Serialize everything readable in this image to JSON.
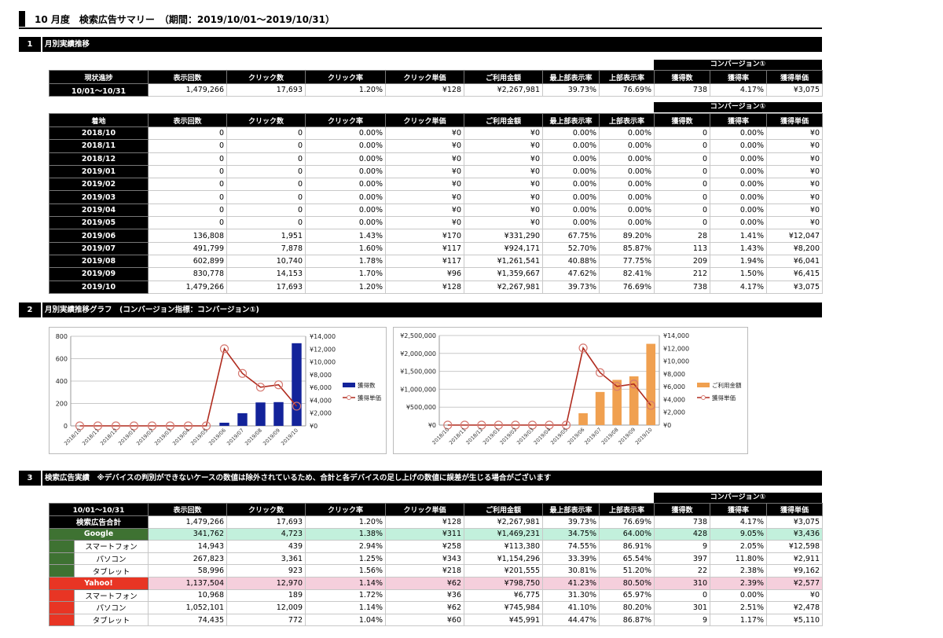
{
  "title": "10 月度　検索広告サマリー　（期間：2019/10/01～2019/10/31）",
  "sections": [
    {
      "num": "1",
      "label": "月別実績推移"
    },
    {
      "num": "2",
      "label": "月別実績推移グラフ　(コンバージョン指標：コンバージョン①)"
    },
    {
      "num": "3",
      "label": "検索広告実績　※デバイスの判別ができないケースの数値は除外されているため、合計と各デバイスの足し上げの数値に誤差が生じる場合がございます"
    }
  ],
  "conversion_group_label": "コンバージョン①",
  "columns": [
    "表示回数",
    "クリック数",
    "クリック率",
    "クリック単価",
    "ご利用金額",
    "最上部表示率",
    "上部表示率",
    "獲得数",
    "獲得率",
    "獲得単価"
  ],
  "table1": {
    "head": "現状進捗",
    "rows": [
      [
        "10/01～10/31",
        "1,479,266",
        "17,693",
        "1.20%",
        "¥128",
        "¥2,267,981",
        "39.73%",
        "76.69%",
        "738",
        "4.17%",
        "¥3,075"
      ]
    ]
  },
  "table2": {
    "head": "着地",
    "rows": [
      [
        "2018/10",
        "0",
        "0",
        "0.00%",
        "¥0",
        "¥0",
        "0.00%",
        "0.00%",
        "0",
        "0.00%",
        "¥0"
      ],
      [
        "2018/11",
        "0",
        "0",
        "0.00%",
        "¥0",
        "¥0",
        "0.00%",
        "0.00%",
        "0",
        "0.00%",
        "¥0"
      ],
      [
        "2018/12",
        "0",
        "0",
        "0.00%",
        "¥0",
        "¥0",
        "0.00%",
        "0.00%",
        "0",
        "0.00%",
        "¥0"
      ],
      [
        "2019/01",
        "0",
        "0",
        "0.00%",
        "¥0",
        "¥0",
        "0.00%",
        "0.00%",
        "0",
        "0.00%",
        "¥0"
      ],
      [
        "2019/02",
        "0",
        "0",
        "0.00%",
        "¥0",
        "¥0",
        "0.00%",
        "0.00%",
        "0",
        "0.00%",
        "¥0"
      ],
      [
        "2019/03",
        "0",
        "0",
        "0.00%",
        "¥0",
        "¥0",
        "0.00%",
        "0.00%",
        "0",
        "0.00%",
        "¥0"
      ],
      [
        "2019/04",
        "0",
        "0",
        "0.00%",
        "¥0",
        "¥0",
        "0.00%",
        "0.00%",
        "0",
        "0.00%",
        "¥0"
      ],
      [
        "2019/05",
        "0",
        "0",
        "0.00%",
        "¥0",
        "¥0",
        "0.00%",
        "0.00%",
        "0",
        "0.00%",
        "¥0"
      ],
      [
        "2019/06",
        "136,808",
        "1,951",
        "1.43%",
        "¥170",
        "¥331,290",
        "67.75%",
        "89.20%",
        "28",
        "1.41%",
        "¥12,047"
      ],
      [
        "2019/07",
        "491,799",
        "7,878",
        "1.60%",
        "¥117",
        "¥924,171",
        "52.70%",
        "85.87%",
        "113",
        "1.43%",
        "¥8,200"
      ],
      [
        "2019/08",
        "602,899",
        "10,740",
        "1.78%",
        "¥117",
        "¥1,261,541",
        "40.88%",
        "77.75%",
        "209",
        "1.94%",
        "¥6,041"
      ],
      [
        "2019/09",
        "830,778",
        "14,153",
        "1.70%",
        "¥96",
        "¥1,359,667",
        "47.62%",
        "82.41%",
        "212",
        "1.50%",
        "¥6,415"
      ],
      [
        "2019/10",
        "1,479,266",
        "17,693",
        "1.20%",
        "¥128",
        "¥2,267,981",
        "39.73%",
        "76.69%",
        "738",
        "4.17%",
        "¥3,075"
      ]
    ]
  },
  "table3": {
    "head": "10/01～10/31",
    "total": [
      "検索広告合計",
      "1,479,266",
      "17,693",
      "1.20%",
      "¥128",
      "¥2,267,981",
      "39.73%",
      "76.69%",
      "738",
      "4.17%",
      "¥3,075"
    ],
    "engines": [
      {
        "color": "#3e7232",
        "row_bg": "#c2f0dc",
        "totals": [
          "Google",
          "341,762",
          "4,723",
          "1.38%",
          "¥311",
          "¥1,469,231",
          "34.75%",
          "64.00%",
          "428",
          "9.05%",
          "¥3,436"
        ],
        "devices": [
          [
            "スマートフォン",
            "14,943",
            "439",
            "2.94%",
            "¥258",
            "¥113,380",
            "74.55%",
            "86.91%",
            "9",
            "2.05%",
            "¥12,598"
          ],
          [
            "パソコン",
            "267,823",
            "3,361",
            "1.25%",
            "¥343",
            "¥1,154,296",
            "33.39%",
            "65.54%",
            "397",
            "11.80%",
            "¥2,911"
          ],
          [
            "タブレット",
            "58,996",
            "923",
            "1.56%",
            "¥218",
            "¥201,555",
            "30.81%",
            "51.20%",
            "22",
            "2.38%",
            "¥9,162"
          ]
        ]
      },
      {
        "color": "#e83524",
        "row_bg": "#f5cfdc",
        "totals": [
          "Yahoo!",
          "1,137,504",
          "12,970",
          "1.14%",
          "¥62",
          "¥798,750",
          "41.23%",
          "80.50%",
          "310",
          "2.39%",
          "¥2,577"
        ],
        "devices": [
          [
            "スマートフォン",
            "10,968",
            "189",
            "1.72%",
            "¥36",
            "¥6,775",
            "31.30%",
            "65.97%",
            "0",
            "0.00%",
            "¥0"
          ],
          [
            "パソコン",
            "1,052,101",
            "12,009",
            "1.14%",
            "¥62",
            "¥745,984",
            "41.10%",
            "80.20%",
            "301",
            "2.51%",
            "¥2,478"
          ],
          [
            "タブレット",
            "74,435",
            "772",
            "1.04%",
            "¥60",
            "¥45,991",
            "44.47%",
            "86.87%",
            "9",
            "1.17%",
            "¥5,110"
          ]
        ]
      }
    ]
  },
  "chart_data": [
    {
      "type": "bar+line",
      "categories": [
        "2018/10",
        "2018/11",
        "2018/12",
        "2019/01",
        "2019/02",
        "2019/03",
        "2019/04",
        "2019/05",
        "2019/06",
        "2019/07",
        "2019/08",
        "2019/09",
        "2019/10"
      ],
      "series": [
        {
          "name": "獲得数",
          "kind": "bar",
          "axis": "left",
          "color": "#13239a",
          "values": [
            0,
            0,
            0,
            0,
            0,
            0,
            0,
            0,
            28,
            113,
            209,
            212,
            738
          ]
        },
        {
          "name": "獲得単価",
          "kind": "line",
          "axis": "right",
          "color": "#b02b1e",
          "values": [
            0,
            0,
            0,
            0,
            0,
            0,
            0,
            0,
            12047,
            8200,
            6041,
            6415,
            3075
          ]
        }
      ],
      "ylim_left": [
        0,
        800
      ],
      "yticks_left": [
        "0",
        "200",
        "400",
        "600",
        "800"
      ],
      "ylim_right": [
        0,
        14000
      ],
      "yticks_right": [
        "¥0",
        "¥2,000",
        "¥4,000",
        "¥6,000",
        "¥8,000",
        "¥10,000",
        "¥12,000",
        "¥14,000"
      ],
      "legend": "right",
      "grid": true
    },
    {
      "type": "bar+line",
      "categories": [
        "2018/10",
        "2018/11",
        "2018/12",
        "2019/01",
        "2019/02",
        "2019/03",
        "2019/04",
        "2019/05",
        "2019/06",
        "2019/07",
        "2019/08",
        "2019/09",
        "2019/10"
      ],
      "series": [
        {
          "name": "ご利用金額",
          "kind": "bar",
          "axis": "left",
          "color": "#f0a050",
          "values": [
            0,
            0,
            0,
            0,
            0,
            0,
            0,
            0,
            331290,
            924171,
            1261541,
            1359667,
            2267981
          ]
        },
        {
          "name": "獲得単価",
          "kind": "line",
          "axis": "right",
          "color": "#b02b1e",
          "values": [
            0,
            0,
            0,
            0,
            0,
            0,
            0,
            0,
            12047,
            8200,
            6041,
            6415,
            3075
          ]
        }
      ],
      "ylim_left": [
        0,
        2500000
      ],
      "yticks_left": [
        "¥0",
        "¥500,000",
        "¥1,000,000",
        "¥1,500,000",
        "¥2,000,000",
        "¥2,500,000"
      ],
      "ylim_right": [
        0,
        14000
      ],
      "yticks_right": [
        "¥0",
        "¥2,000",
        "¥4,000",
        "¥6,000",
        "¥8,000",
        "¥10,000",
        "¥12,000",
        "¥14,000"
      ],
      "legend": "right",
      "grid": true
    }
  ]
}
